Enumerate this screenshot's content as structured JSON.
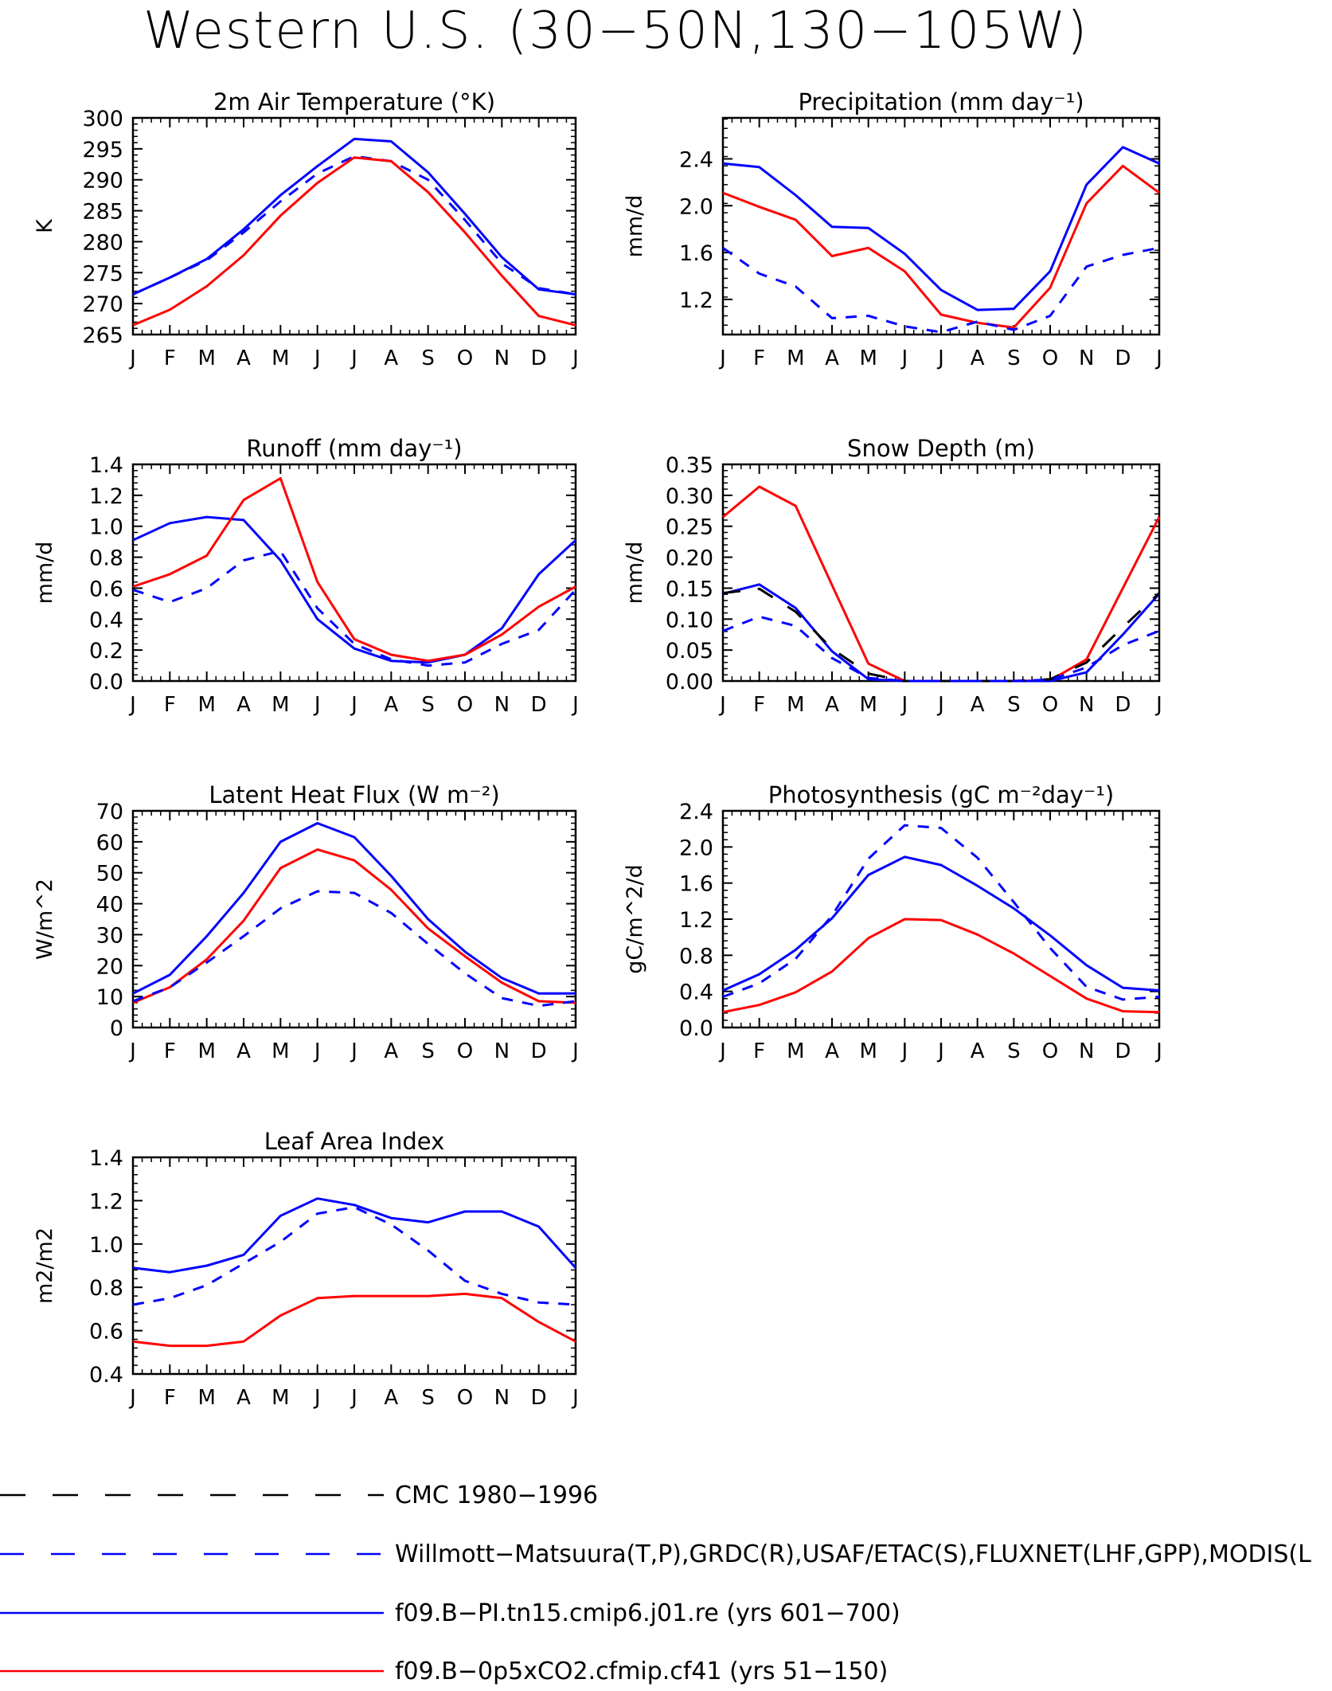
{
  "page": {
    "title": "Western U.S. (30−50N,130−105W)"
  },
  "months": [
    "J",
    "F",
    "M",
    "A",
    "M",
    "J",
    "J",
    "A",
    "S",
    "O",
    "N",
    "D",
    "J"
  ],
  "styles": {
    "cmc": {
      "color": "#000000",
      "dash": "22,22"
    },
    "obs": {
      "color": "#0000ff",
      "dash": "14,12"
    },
    "pi": {
      "color": "#0000ff",
      "dash": ""
    },
    "co2": {
      "color": "#ff0000",
      "dash": ""
    }
  },
  "legend": [
    {
      "key": "cmc",
      "label": "CMC 1980−1996"
    },
    {
      "key": "obs",
      "label": "Willmott−Matsuura(T,P),GRDC(R),USAF/ETAC(S),FLUXNET(LHF,GPP),MODIS(L"
    },
    {
      "key": "pi",
      "label": "f09.B−PI.tn15.cmip6.j01.re (yrs 601−700)"
    },
    {
      "key": "co2",
      "label": "f09.B−0p5xCO2.cfmip.cf41 (yrs 51−150)"
    }
  ],
  "chart_data": [
    {
      "type": "line",
      "title": "2m Air Temperature (°K)",
      "ylabel": "K",
      "ylim": [
        265,
        300
      ],
      "yticks": [
        "265",
        "270",
        "275",
        "280",
        "285",
        "290",
        "295",
        "300"
      ],
      "ytickvals": [
        265,
        270,
        275,
        280,
        285,
        290,
        295,
        300
      ],
      "series": [
        {
          "key": "pi",
          "values": [
            271.5,
            274.2,
            277.2,
            282.0,
            287.5,
            292.2,
            296.6,
            296.2,
            291.2,
            284.5,
            277.5,
            272.3,
            271.5
          ]
        },
        {
          "key": "obs",
          "values": [
            271.5,
            274.2,
            277.0,
            281.5,
            286.5,
            291.0,
            293.8,
            293.0,
            290.0,
            283.5,
            276.5,
            272.5,
            271.5
          ]
        },
        {
          "key": "co2",
          "values": [
            266.5,
            269.0,
            272.8,
            277.8,
            284.2,
            289.5,
            293.6,
            293.0,
            288.0,
            281.5,
            274.5,
            268.0,
            266.5
          ]
        }
      ]
    },
    {
      "type": "line",
      "title": "Precipitation (mm day⁻¹)",
      "ylabel": "mm/d",
      "ylim": [
        0.9,
        2.75
      ],
      "yticks": [
        "1.2",
        "1.6",
        "2.0",
        "2.4"
      ],
      "ytickvals": [
        1.2,
        1.6,
        2.0,
        2.4
      ],
      "series": [
        {
          "key": "pi",
          "values": [
            2.36,
            2.33,
            2.09,
            1.82,
            1.81,
            1.59,
            1.28,
            1.11,
            1.12,
            1.44,
            2.18,
            2.5,
            2.36
          ]
        },
        {
          "key": "co2",
          "values": [
            2.11,
            1.99,
            1.88,
            1.57,
            1.64,
            1.44,
            1.07,
            1.0,
            0.96,
            1.3,
            2.02,
            2.34,
            2.11
          ]
        },
        {
          "key": "obs",
          "values": [
            1.64,
            1.42,
            1.31,
            1.04,
            1.06,
            0.97,
            0.92,
            1.01,
            0.94,
            1.06,
            1.48,
            1.58,
            1.64
          ]
        }
      ]
    },
    {
      "type": "line",
      "title": "Runoff (mm day⁻¹)",
      "ylabel": "mm/d",
      "ylim": [
        0.0,
        1.4
      ],
      "yticks": [
        "0.0",
        "0.2",
        "0.4",
        "0.6",
        "0.8",
        "1.0",
        "1.2",
        "1.4"
      ],
      "ytickvals": [
        0,
        0.2,
        0.4,
        0.6,
        0.8,
        1.0,
        1.2,
        1.4
      ],
      "series": [
        {
          "key": "pi",
          "values": [
            0.91,
            1.02,
            1.06,
            1.04,
            0.78,
            0.4,
            0.21,
            0.13,
            0.12,
            0.17,
            0.34,
            0.69,
            0.91
          ]
        },
        {
          "key": "co2",
          "values": [
            0.61,
            0.69,
            0.81,
            1.17,
            1.31,
            0.64,
            0.27,
            0.17,
            0.13,
            0.17,
            0.3,
            0.48,
            0.61
          ]
        },
        {
          "key": "obs",
          "values": [
            0.59,
            0.51,
            0.6,
            0.78,
            0.84,
            0.47,
            0.24,
            0.14,
            0.1,
            0.12,
            0.24,
            0.33,
            0.59
          ]
        }
      ]
    },
    {
      "type": "line",
      "title": "Snow Depth (m)",
      "ylabel": "mm/d",
      "ylim": [
        0.0,
        0.35
      ],
      "yticks": [
        "0.00",
        "0.05",
        "0.10",
        "0.15",
        "0.20",
        "0.25",
        "0.30",
        "0.35"
      ],
      "ytickvals": [
        0,
        0.05,
        0.1,
        0.15,
        0.2,
        0.25,
        0.3,
        0.35
      ],
      "series": [
        {
          "key": "co2",
          "values": [
            0.265,
            0.314,
            0.283,
            0.155,
            0.028,
            0.0,
            0.0,
            0.0,
            0.0,
            0.001,
            0.035,
            0.15,
            0.265
          ]
        },
        {
          "key": "pi",
          "values": [
            0.141,
            0.156,
            0.118,
            0.048,
            0.003,
            0.0,
            0.0,
            0.0,
            0.0,
            0.0,
            0.014,
            0.075,
            0.141
          ]
        },
        {
          "key": "cmc",
          "values": [
            0.142,
            0.149,
            0.112,
            0.052,
            0.012,
            0.0,
            0.0,
            0.0,
            0.0,
            0.003,
            0.03,
            0.087,
            0.142
          ]
        },
        {
          "key": "obs",
          "values": [
            0.081,
            0.104,
            0.089,
            0.037,
            0.005,
            0.0,
            0.0,
            0.0,
            0.0,
            0.002,
            0.022,
            0.058,
            0.081
          ]
        }
      ]
    },
    {
      "type": "line",
      "title": "Latent Heat Flux (W m⁻²)",
      "ylabel": "W/m^2",
      "ylim": [
        0,
        70
      ],
      "yticks": [
        "0",
        "10",
        "20",
        "30",
        "40",
        "50",
        "60",
        "70"
      ],
      "ytickvals": [
        0,
        10,
        20,
        30,
        40,
        50,
        60,
        70
      ],
      "series": [
        {
          "key": "pi",
          "values": [
            11.0,
            17.0,
            29.5,
            43.5,
            60.0,
            66.0,
            61.5,
            49.0,
            35.0,
            24.5,
            16.0,
            11.0,
            11.0
          ]
        },
        {
          "key": "co2",
          "values": [
            8.0,
            13.0,
            22.0,
            34.5,
            51.5,
            57.5,
            54.0,
            44.5,
            32.0,
            23.0,
            14.5,
            8.5,
            8.0
          ]
        },
        {
          "key": "obs",
          "values": [
            8.5,
            13.0,
            21.0,
            29.5,
            38.5,
            44.0,
            43.5,
            37.0,
            27.0,
            17.5,
            9.5,
            7.0,
            8.5
          ]
        }
      ]
    },
    {
      "type": "line",
      "title": "Photosynthesis (gC m⁻²day⁻¹)",
      "ylabel": "gC/m^2/d",
      "ylim": [
        0.0,
        2.4
      ],
      "yticks": [
        "0.0",
        "0.4",
        "0.8",
        "1.2",
        "1.6",
        "2.0",
        "2.4"
      ],
      "ytickvals": [
        0,
        0.4,
        0.8,
        1.2,
        1.6,
        2.0,
        2.4
      ],
      "series": [
        {
          "key": "obs",
          "values": [
            0.34,
            0.49,
            0.76,
            1.24,
            1.87,
            2.24,
            2.21,
            1.88,
            1.39,
            0.88,
            0.45,
            0.31,
            0.34
          ]
        },
        {
          "key": "pi",
          "values": [
            0.41,
            0.59,
            0.86,
            1.21,
            1.69,
            1.89,
            1.8,
            1.57,
            1.32,
            1.02,
            0.69,
            0.44,
            0.41
          ]
        },
        {
          "key": "co2",
          "values": [
            0.17,
            0.25,
            0.39,
            0.62,
            0.99,
            1.2,
            1.19,
            1.03,
            0.82,
            0.57,
            0.32,
            0.18,
            0.17
          ]
        }
      ]
    },
    {
      "type": "line",
      "title": "Leaf Area Index",
      "ylabel": "m2/m2",
      "ylim": [
        0.4,
        1.4
      ],
      "yticks": [
        "0.4",
        "0.6",
        "0.8",
        "1.0",
        "1.2",
        "1.4"
      ],
      "ytickvals": [
        0.4,
        0.6,
        0.8,
        1.0,
        1.2,
        1.4
      ],
      "series": [
        {
          "key": "pi",
          "values": [
            0.89,
            0.87,
            0.9,
            0.95,
            1.13,
            1.21,
            1.18,
            1.12,
            1.1,
            1.15,
            1.15,
            1.08,
            0.89
          ]
        },
        {
          "key": "obs",
          "values": [
            0.72,
            0.75,
            0.81,
            0.91,
            1.01,
            1.14,
            1.17,
            1.09,
            0.97,
            0.83,
            0.77,
            0.73,
            0.72
          ]
        },
        {
          "key": "co2",
          "values": [
            0.55,
            0.53,
            0.53,
            0.55,
            0.67,
            0.75,
            0.76,
            0.76,
            0.76,
            0.77,
            0.75,
            0.64,
            0.55
          ]
        }
      ]
    }
  ]
}
